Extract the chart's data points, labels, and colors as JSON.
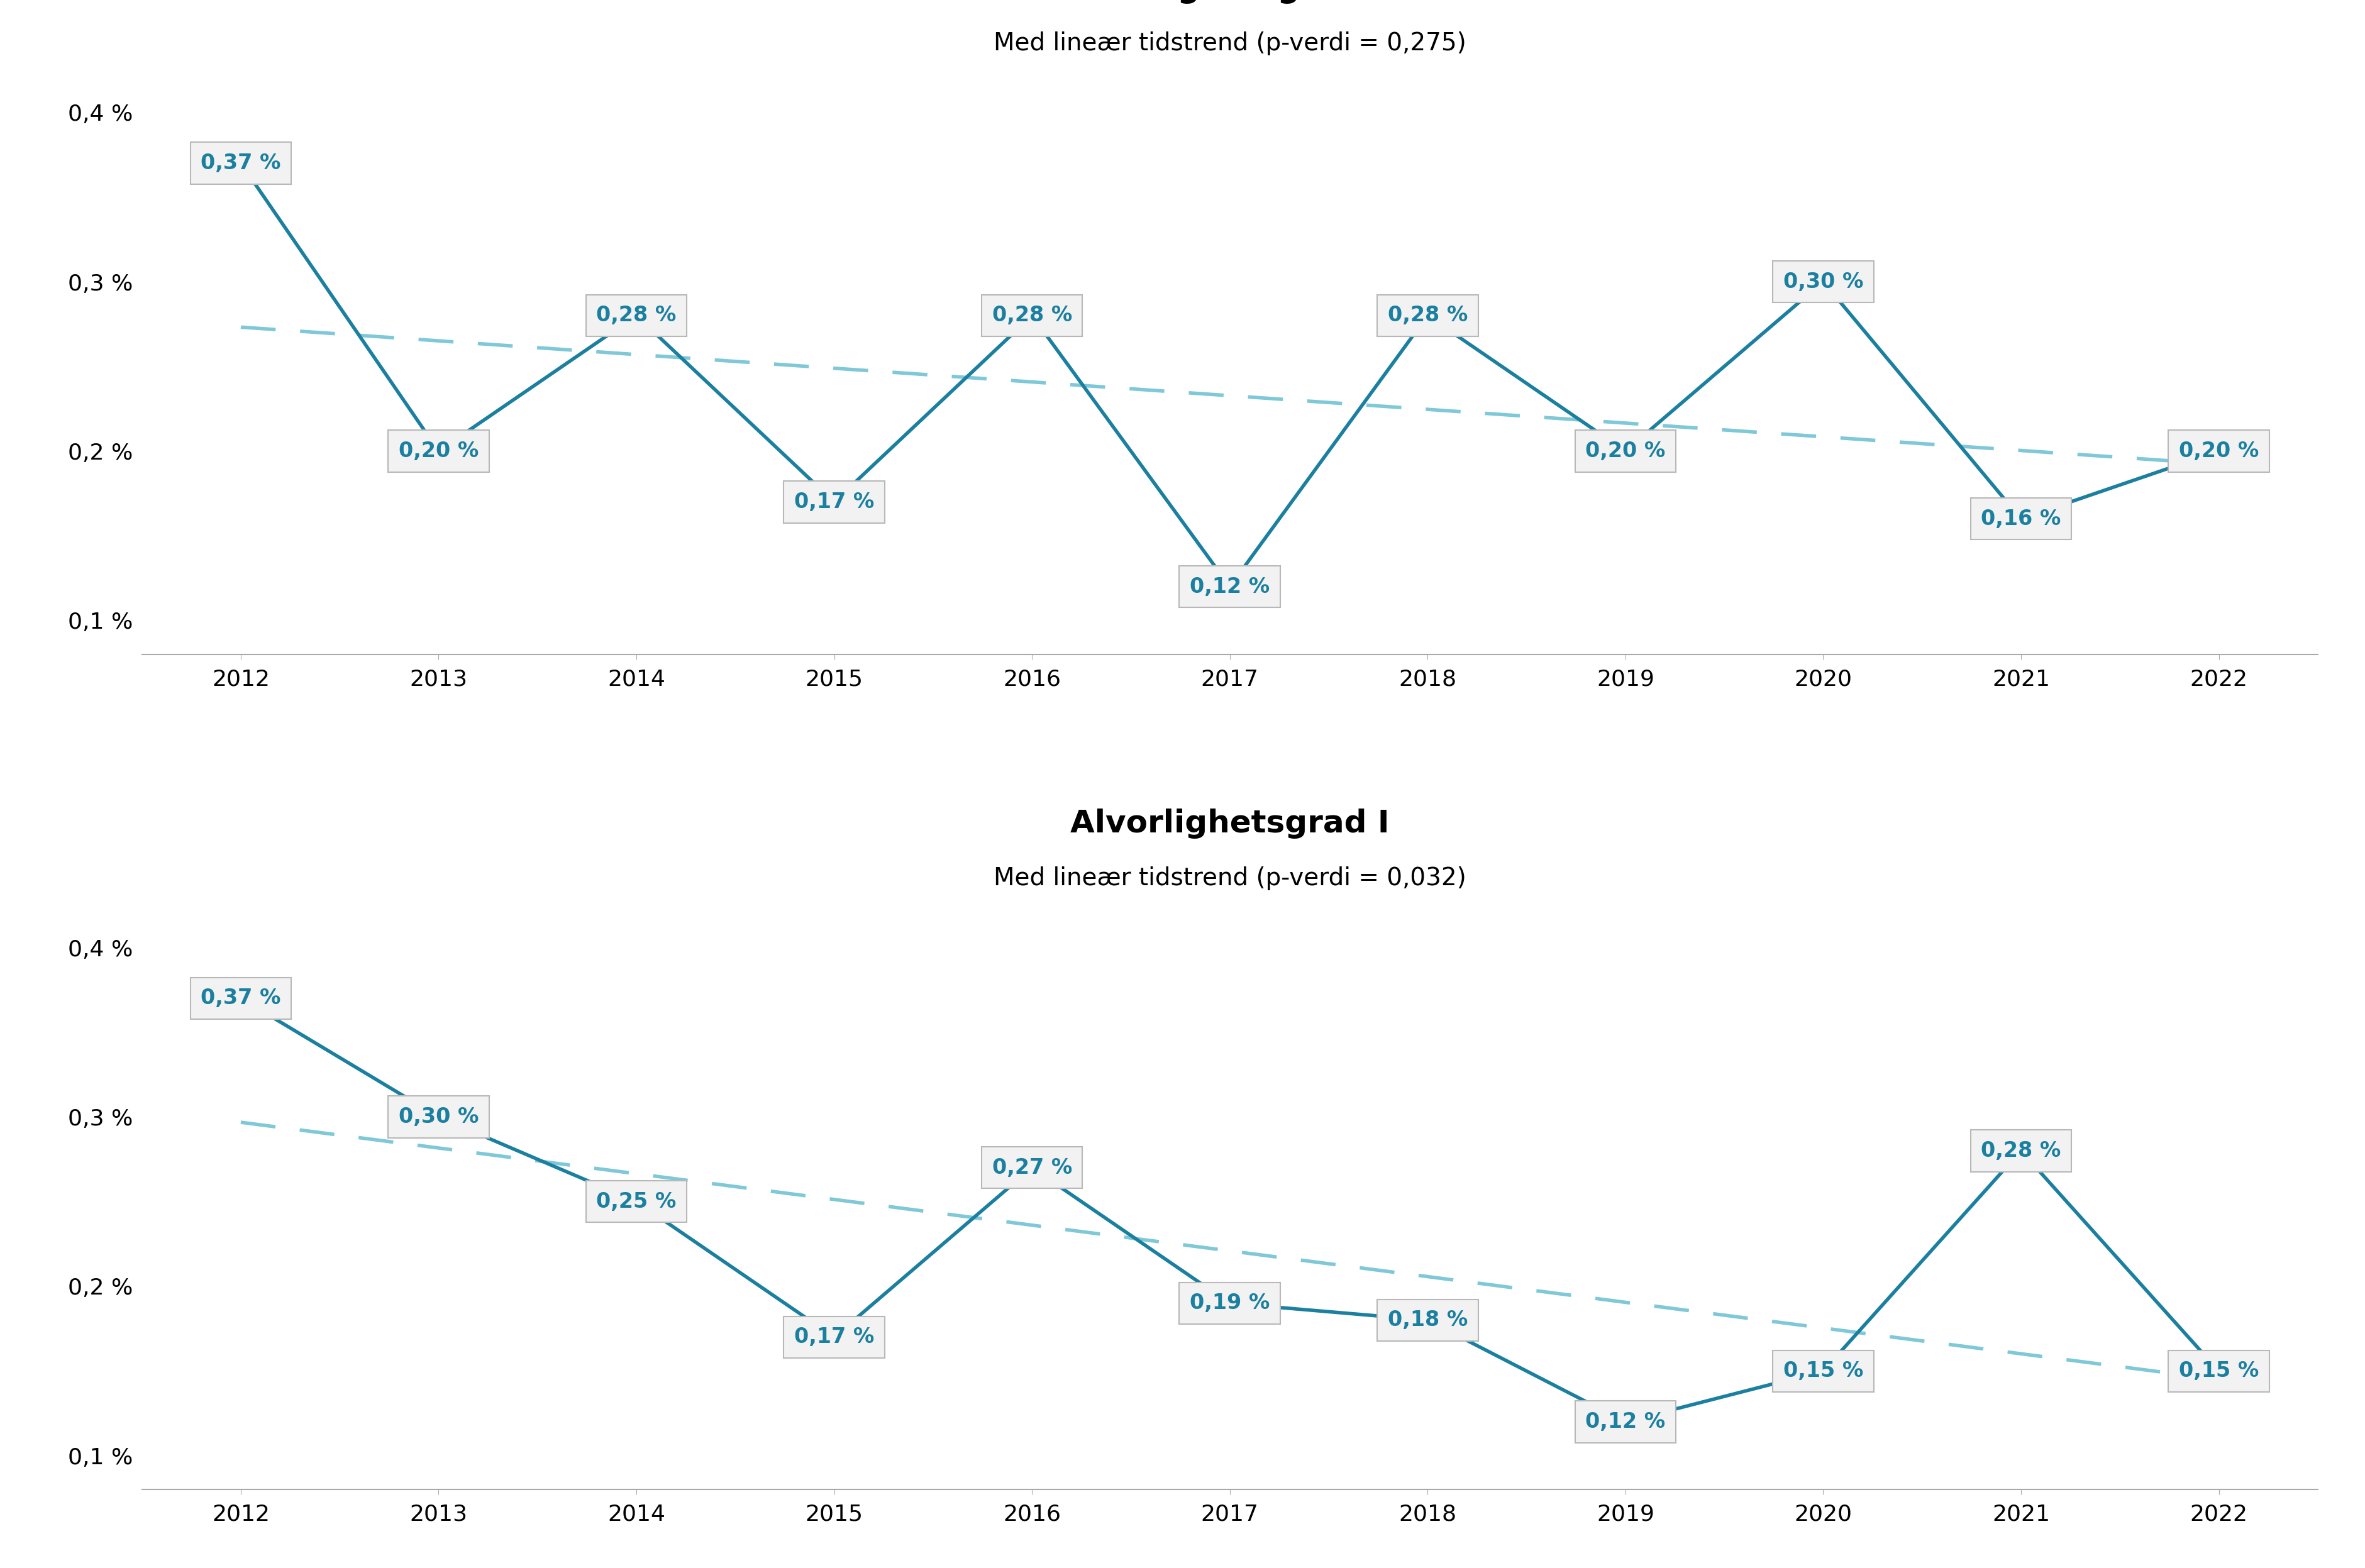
{
  "H": {
    "title": "Alvorlighetsgrad H",
    "subtitle": "Med lineær tidstrend (p-verdi = 0,275)",
    "years": [
      2012,
      2013,
      2014,
      2015,
      2016,
      2017,
      2018,
      2019,
      2020,
      2021,
      2022
    ],
    "values": [
      0.37,
      0.2,
      0.28,
      0.17,
      0.28,
      0.12,
      0.28,
      0.2,
      0.3,
      0.16,
      0.2
    ],
    "labels": [
      "0,37 %",
      "0,20 %",
      "0,28 %",
      "0,17 %",
      "0,28 %",
      "0,12 %",
      "0,28 %",
      "0,20 %",
      "0,30 %",
      "0,16 %",
      "0,20 %"
    ]
  },
  "I": {
    "title": "Alvorlighetsgrad I",
    "subtitle": "Med lineær tidstrend (p-verdi = 0,032)",
    "years": [
      2012,
      2013,
      2014,
      2015,
      2016,
      2017,
      2018,
      2019,
      2020,
      2021,
      2022
    ],
    "values": [
      0.37,
      0.3,
      0.25,
      0.17,
      0.27,
      0.19,
      0.18,
      0.12,
      0.15,
      0.28,
      0.15
    ],
    "labels": [
      "0,37 %",
      "0,30 %",
      "0,25 %",
      "0,17 %",
      "0,27 %",
      "0,19 %",
      "0,18 %",
      "0,12 %",
      "0,15 %",
      "0,28 %",
      "0,15 %"
    ]
  },
  "line_color": "#1B7FA0",
  "trend_color": "#7EC8D8",
  "label_color": "#1B7FA0",
  "box_edge_color": "#B8B8B8",
  "box_face_color": "#F2F2F2",
  "ylim": [
    0.08,
    0.42
  ],
  "yticks": [
    0.1,
    0.2,
    0.3,
    0.4
  ],
  "ytick_labels": [
    "0,1 %",
    "0,2 %",
    "0,3 %",
    "0,4 %"
  ],
  "title_fontsize": 36,
  "subtitle_fontsize": 28,
  "tick_fontsize": 26,
  "label_fontsize": 24,
  "bg_color": "#FFFFFF"
}
